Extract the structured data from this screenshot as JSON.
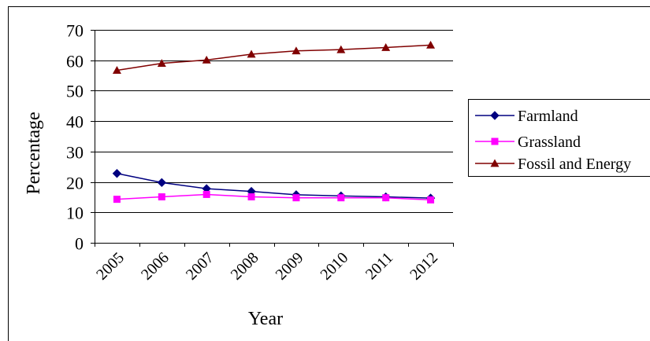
{
  "chart_data": {
    "type": "line",
    "title": "",
    "xlabel": "Year",
    "ylabel": "Percentage",
    "categories": [
      "2005",
      "2006",
      "2007",
      "2008",
      "2009",
      "2010",
      "2011",
      "2012"
    ],
    "ylim": [
      0,
      70
    ],
    "yticks": [
      0,
      10,
      20,
      30,
      40,
      50,
      60,
      70
    ],
    "grid": "horizontal",
    "legend_position": "right",
    "series": [
      {
        "name": "Farmland",
        "color": "#000080",
        "marker": "diamond",
        "values": [
          22.8,
          19.8,
          17.8,
          16.9,
          15.8,
          15.4,
          15.1,
          14.7
        ]
      },
      {
        "name": "Grassland",
        "color": "#FF00FF",
        "marker": "square",
        "values": [
          14.3,
          15.1,
          15.9,
          15.1,
          14.8,
          14.8,
          14.8,
          14.1
        ]
      },
      {
        "name": "Fossil and Energy",
        "color": "#800000",
        "marker": "triangle",
        "values": [
          56.7,
          59.0,
          60.1,
          62.0,
          63.1,
          63.5,
          64.2,
          65.0
        ]
      }
    ]
  }
}
